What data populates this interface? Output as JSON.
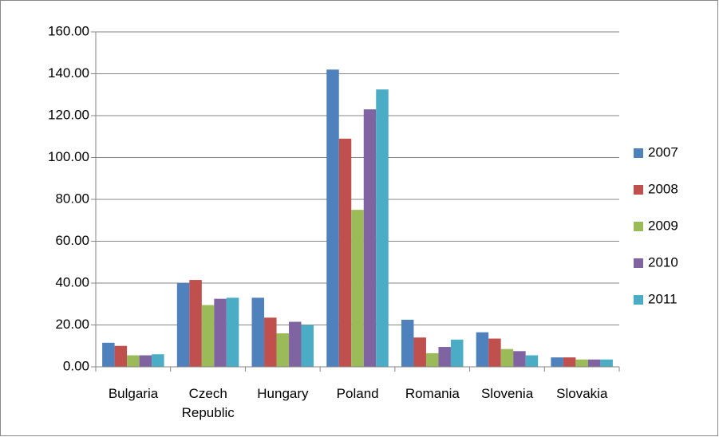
{
  "chart_data": {
    "type": "bar",
    "categories": [
      "Bulgaria",
      "Czech Republic",
      "Hungary",
      "Poland",
      "Romania",
      "Slovenia",
      "Slovakia"
    ],
    "series": [
      {
        "name": "2007",
        "color": "#4f81bd",
        "values": [
          11.5,
          40,
          33,
          142,
          22.5,
          16.5,
          4.5
        ]
      },
      {
        "name": "2008",
        "color": "#c0504d",
        "values": [
          10,
          41.5,
          23.5,
          109,
          14,
          13.5,
          4.5
        ]
      },
      {
        "name": "2009",
        "color": "#9bbb59",
        "values": [
          5.5,
          29.5,
          16,
          75,
          6.5,
          8.5,
          3.5
        ]
      },
      {
        "name": "2010",
        "color": "#8064a2",
        "values": [
          5.5,
          32.5,
          21.5,
          123,
          9.5,
          7.5,
          3.5
        ]
      },
      {
        "name": "2011",
        "color": "#4bacc6",
        "values": [
          6,
          33,
          20,
          132.5,
          13,
          5.5,
          3.5
        ]
      }
    ],
    "ylim": [
      0,
      160
    ],
    "yticks": [
      {
        "value": 0,
        "label": "0.00"
      },
      {
        "value": 20,
        "label": "20.00"
      },
      {
        "value": 40,
        "label": "40.00"
      },
      {
        "value": 60,
        "label": "60.00"
      },
      {
        "value": 80,
        "label": "80.00"
      },
      {
        "value": 100,
        "label": "100.00"
      },
      {
        "value": 120,
        "label": "120.00"
      },
      {
        "value": 140,
        "label": "140.00"
      },
      {
        "value": 160,
        "label": "160.00"
      }
    ],
    "grid": true,
    "legend": "right"
  }
}
